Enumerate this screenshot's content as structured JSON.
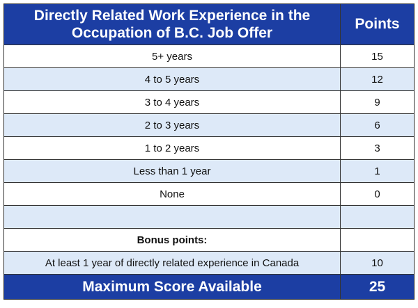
{
  "header": {
    "title": "Directly Related Work Experience in the\nOccupation of B.C. Job Offer",
    "points_label": "Points"
  },
  "rows": [
    {
      "label": "5+ years",
      "points": "15"
    },
    {
      "label": "4 to 5 years",
      "points": "12"
    },
    {
      "label": "3 to 4 years",
      "points": "9"
    },
    {
      "label": "2 to 3 years",
      "points": "6"
    },
    {
      "label": "1 to 2 years",
      "points": "3"
    },
    {
      "label": "Less than 1 year",
      "points": "1"
    },
    {
      "label": "None",
      "points": "0"
    },
    {
      "label": "",
      "points": ""
    },
    {
      "label": "Bonus points:",
      "points": ""
    },
    {
      "label": "At least 1 year of directly related experience in Canada",
      "points": "10"
    }
  ],
  "footer": {
    "label": "Maximum Score Available",
    "points": "25"
  },
  "colors": {
    "header_bg": "#1c3ea3",
    "alt_row_bg": "#dde9f8",
    "border": "#333333"
  }
}
